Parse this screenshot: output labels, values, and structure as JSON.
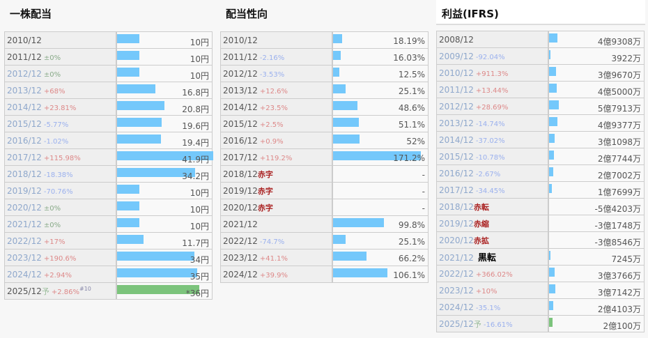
{
  "panels": [
    {
      "id": "l",
      "title": "一株配当",
      "bar_scale_max": 41.9,
      "rows": [
        {
          "year": "2010/12",
          "chg": "",
          "t": "",
          "value": 10,
          "label": "10円",
          "dim": false
        },
        {
          "year": "2011/12",
          "chg": "±0%",
          "t": "flat",
          "value": 10,
          "label": "10円",
          "dim": false
        },
        {
          "year": "2012/12",
          "chg": "±0%",
          "t": "flat",
          "value": 10,
          "label": "10円",
          "dim": true
        },
        {
          "year": "2013/12",
          "chg": "+68%",
          "t": "up",
          "value": 16.8,
          "label": "16.8円",
          "dim": true
        },
        {
          "year": "2014/12",
          "chg": "+23.81%",
          "t": "up",
          "value": 20.8,
          "label": "20.8円",
          "dim": true
        },
        {
          "year": "2015/12",
          "chg": "-5.77%",
          "t": "down",
          "value": 19.6,
          "label": "19.6円",
          "dim": true
        },
        {
          "year": "2016/12",
          "chg": "-1.02%",
          "t": "down",
          "value": 19.4,
          "label": "19.4円",
          "dim": true
        },
        {
          "year": "2017/12",
          "chg": "+115.98%",
          "t": "up",
          "value": 41.9,
          "label": "41.9円",
          "dim": true
        },
        {
          "year": "2018/12",
          "chg": "-18.38%",
          "t": "down",
          "value": 34.2,
          "label": "34.2円",
          "dim": true
        },
        {
          "year": "2019/12",
          "chg": "-70.76%",
          "t": "down",
          "value": 10,
          "label": "10円",
          "dim": true
        },
        {
          "year": "2020/12",
          "chg": "±0%",
          "t": "flat",
          "value": 10,
          "label": "10円",
          "dim": true
        },
        {
          "year": "2021/12",
          "chg": "±0%",
          "t": "flat",
          "value": 10,
          "label": "10円",
          "dim": true
        },
        {
          "year": "2022/12",
          "chg": "+17%",
          "t": "up",
          "value": 11.7,
          "label": "11.7円",
          "dim": true
        },
        {
          "year": "2023/12",
          "chg": "+190.6%",
          "t": "up",
          "value": 34,
          "label": "34円",
          "dim": true
        },
        {
          "year": "2024/12",
          "chg": "+2.94%",
          "t": "up",
          "value": 35,
          "label": "35円",
          "dim": true
        },
        {
          "year": "2025/12",
          "fc": "予",
          "chg": "+2.86%",
          "sup": "#10",
          "t": "up",
          "value": 36,
          "label": "*36円",
          "dim": false,
          "forecast": true
        }
      ]
    },
    {
      "id": "m",
      "title": "配当性向",
      "bar_scale_max": 187.5,
      "rows": [
        {
          "year": "2010/12",
          "chg": "",
          "t": "",
          "value": 18.19,
          "label": "18.19%"
        },
        {
          "year": "2011/12",
          "chg": "-2.16%",
          "t": "down",
          "value": 16.03,
          "label": "16.03%"
        },
        {
          "year": "2012/12",
          "chg": "-3.53%",
          "t": "down",
          "value": 12.5,
          "label": "12.5%"
        },
        {
          "year": "2013/12",
          "chg": "+12.6%",
          "t": "up",
          "value": 25.1,
          "label": "25.1%"
        },
        {
          "year": "2014/12",
          "chg": "+23.5%",
          "t": "up",
          "value": 48.6,
          "label": "48.6%"
        },
        {
          "year": "2015/12",
          "chg": "+2.5%",
          "t": "up",
          "value": 51.1,
          "label": "51.1%"
        },
        {
          "year": "2016/12",
          "chg": "+0.9%",
          "t": "up",
          "value": 52,
          "label": "52%"
        },
        {
          "year": "2017/12",
          "chg": "+119.2%",
          "t": "up",
          "value": 171.2,
          "label": "171.2%"
        },
        {
          "year": "2018/12",
          "chg": "赤字",
          "t": "red",
          "value": 0,
          "label": "-"
        },
        {
          "year": "2019/12",
          "chg": "赤字",
          "t": "red",
          "value": 0,
          "label": "-"
        },
        {
          "year": "2020/12",
          "chg": "赤字",
          "t": "red",
          "value": 0,
          "label": "-"
        },
        {
          "year": "2021/12",
          "chg": "",
          "t": "",
          "value": 99.8,
          "label": "99.8%"
        },
        {
          "year": "2022/12",
          "chg": "-74.7%",
          "t": "down",
          "value": 25.1,
          "label": "25.1%"
        },
        {
          "year": "2023/12",
          "chg": "+41.1%",
          "t": "up",
          "value": 66.2,
          "label": "66.2%"
        },
        {
          "year": "2024/12",
          "chg": "+39.9%",
          "t": "up",
          "value": 106.1,
          "label": "106.1%"
        }
      ]
    },
    {
      "id": "r",
      "title": "利益(IFRS)",
      "bar_scale_max": 5330000000,
      "rows": [
        {
          "year": "2008/12",
          "chg": "",
          "t": "",
          "value": 493080000,
          "label": "4億9308万",
          "dim": false
        },
        {
          "year": "2009/12",
          "chg": "-92.04%",
          "t": "down",
          "value": 39220000,
          "label": "3922万",
          "dim": true
        },
        {
          "year": "2010/12",
          "chg": "+911.3%",
          "t": "up",
          "value": 396700000,
          "label": "3億9670万",
          "dim": true
        },
        {
          "year": "2011/12",
          "chg": "+13.44%",
          "t": "up",
          "value": 450000000,
          "label": "4億5000万",
          "dim": true
        },
        {
          "year": "2012/12",
          "chg": "+28.69%",
          "t": "up",
          "value": 579130000,
          "label": "5億7913万",
          "dim": true
        },
        {
          "year": "2013/12",
          "chg": "-14.74%",
          "t": "down",
          "value": 493770000,
          "label": "4億9377万",
          "dim": true
        },
        {
          "year": "2014/12",
          "chg": "-37.02%",
          "t": "down",
          "value": 310980000,
          "label": "3億1098万",
          "dim": true
        },
        {
          "year": "2015/12",
          "chg": "-10.78%",
          "t": "down",
          "value": 277440000,
          "label": "2億7744万",
          "dim": true
        },
        {
          "year": "2016/12",
          "chg": "-2.67%",
          "t": "down",
          "value": 270020000,
          "label": "2億7002万",
          "dim": true
        },
        {
          "year": "2017/12",
          "chg": "-34.45%",
          "t": "down",
          "value": 176990000,
          "label": "1億7699万",
          "dim": true
        },
        {
          "year": "2018/12",
          "chg": "赤転",
          "t": "red",
          "value": -542030000,
          "label": "-5億4203万",
          "dim": true
        },
        {
          "year": "2019/12",
          "chg": "赤縮",
          "t": "red",
          "value": -317480000,
          "label": "-3億1748万",
          "dim": true
        },
        {
          "year": "2020/12",
          "chg": "赤拡",
          "t": "red",
          "value": -385460000,
          "label": "-3億8546万",
          "dim": true
        },
        {
          "year": "2021/12",
          "chg": "黒転",
          "t": "black",
          "value": 72450000,
          "label": "7245万",
          "dim": true
        },
        {
          "year": "2022/12",
          "chg": "+366.02%",
          "t": "up",
          "value": 337660000,
          "label": "3億3766万",
          "dim": true
        },
        {
          "year": "2023/12",
          "chg": "+10%",
          "t": "up",
          "value": 371420000,
          "label": "3億7142万",
          "dim": true
        },
        {
          "year": "2024/12",
          "chg": "-35.1%",
          "t": "down",
          "value": 241030000,
          "label": "2億4103万",
          "dim": true
        },
        {
          "year": "2025/12",
          "fc": "予",
          "chg": "-16.61%",
          "t": "down",
          "value": 201000000,
          "label": "2億100万",
          "dim": true,
          "forecast": true
        }
      ]
    }
  ]
}
